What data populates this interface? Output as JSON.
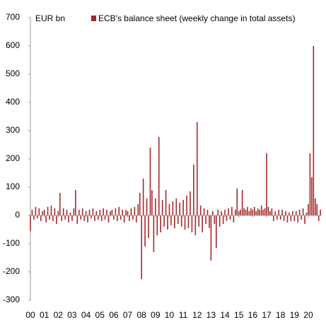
{
  "chart_data": {
    "type": "bar",
    "y_label": "EUR bn",
    "series": [
      {
        "name": "ECB's balance sheet (weekly change in total assets)",
        "color": "#a52a2a",
        "x": [
          2000,
          2000.125,
          2000.25,
          2000.375,
          2000.5,
          2000.625,
          2000.75,
          2000.875,
          2001,
          2001.125,
          2001.25,
          2001.375,
          2001.5,
          2001.625,
          2001.75,
          2001.875,
          2002,
          2002.125,
          2002.25,
          2002.375,
          2002.5,
          2002.625,
          2002.75,
          2002.875,
          2003,
          2003.125,
          2003.25,
          2003.375,
          2003.5,
          2003.625,
          2003.75,
          2003.875,
          2004,
          2004.125,
          2004.25,
          2004.375,
          2004.5,
          2004.625,
          2004.75,
          2004.875,
          2005,
          2005.125,
          2005.25,
          2005.375,
          2005.5,
          2005.625,
          2005.75,
          2005.875,
          2006,
          2006.125,
          2006.25,
          2006.375,
          2006.5,
          2006.625,
          2006.75,
          2006.875,
          2007,
          2007.125,
          2007.25,
          2007.375,
          2007.5,
          2007.625,
          2007.75,
          2007.875,
          2008,
          2008.125,
          2008.25,
          2008.375,
          2008.5,
          2008.625,
          2008.75,
          2008.875,
          2009,
          2009.125,
          2009.25,
          2009.375,
          2009.5,
          2009.625,
          2009.75,
          2009.875,
          2010,
          2010.125,
          2010.25,
          2010.375,
          2010.5,
          2010.625,
          2010.75,
          2010.875,
          2011,
          2011.125,
          2011.25,
          2011.375,
          2011.5,
          2011.625,
          2011.75,
          2011.875,
          2012,
          2012.125,
          2012.25,
          2012.375,
          2012.5,
          2012.625,
          2012.75,
          2012.875,
          2013,
          2013.125,
          2013.25,
          2013.375,
          2013.5,
          2013.625,
          2013.75,
          2013.875,
          2014,
          2014.125,
          2014.25,
          2014.375,
          2014.5,
          2014.625,
          2014.75,
          2014.875,
          2015,
          2015.125,
          2015.25,
          2015.375,
          2015.5,
          2015.625,
          2015.75,
          2015.875,
          2016,
          2016.125,
          2016.25,
          2016.375,
          2016.5,
          2016.625,
          2016.75,
          2016.875,
          2017,
          2017.125,
          2017.25,
          2017.375,
          2017.5,
          2017.625,
          2017.75,
          2017.875,
          2018,
          2018.125,
          2018.25,
          2018.375,
          2018.5,
          2018.625,
          2018.75,
          2018.875,
          2019,
          2019.125,
          2019.25,
          2019.375,
          2019.5,
          2019.625,
          2019.75,
          2019.875,
          2020,
          2020.125,
          2020.25,
          2020.375,
          2020.5,
          2020.625,
          2020.75,
          2020.875
        ],
        "values": [
          -55,
          20,
          -15,
          30,
          -10,
          25,
          -20,
          15,
          20,
          -25,
          30,
          -15,
          35,
          -20,
          25,
          -30,
          15,
          80,
          -20,
          25,
          -15,
          20,
          -25,
          10,
          -20,
          25,
          90,
          -30,
          20,
          -15,
          25,
          -20,
          15,
          -25,
          20,
          -10,
          25,
          -20,
          15,
          -15,
          20,
          -20,
          25,
          -15,
          20,
          -25,
          15,
          20,
          -15,
          25,
          -20,
          30,
          -15,
          20,
          -25,
          20,
          15,
          -20,
          25,
          -15,
          30,
          -25,
          40,
          80,
          -225,
          130,
          -110,
          60,
          -80,
          240,
          90,
          -130,
          60,
          -70,
          278,
          -60,
          55,
          -40,
          90,
          -50,
          40,
          -35,
          50,
          -45,
          60,
          -30,
          45,
          -40,
          55,
          -50,
          70,
          -45,
          85,
          -60,
          180,
          -70,
          330,
          -40,
          35,
          -60,
          25,
          -30,
          20,
          -45,
          -160,
          15,
          -30,
          -115,
          20,
          -40,
          15,
          -30,
          20,
          -20,
          25,
          -15,
          30,
          -25,
          20,
          95,
          15,
          20,
          90,
          25,
          20,
          30,
          15,
          25,
          20,
          30,
          15,
          25,
          20,
          35,
          20,
          25,
          220,
          30,
          15,
          25,
          -20,
          15,
          -15,
          20,
          -15,
          20,
          -20,
          15,
          -25,
          10,
          -20,
          15,
          -20,
          15,
          -25,
          20,
          -15,
          25,
          -30,
          10,
          40,
          220,
          135,
          600,
          60,
          40,
          -20,
          20
        ]
      }
    ],
    "xlim": [
      2000,
      2021
    ],
    "xticks": [
      {
        "value": 2000,
        "label": "00"
      },
      {
        "value": 2001,
        "label": "01"
      },
      {
        "value": 2002,
        "label": "02"
      },
      {
        "value": 2003,
        "label": "03"
      },
      {
        "value": 2004,
        "label": "04"
      },
      {
        "value": 2005,
        "label": "05"
      },
      {
        "value": 2006,
        "label": "06"
      },
      {
        "value": 2007,
        "label": "07"
      },
      {
        "value": 2008,
        "label": "08"
      },
      {
        "value": 2009,
        "label": "09"
      },
      {
        "value": 2010,
        "label": "10"
      },
      {
        "value": 2011,
        "label": "11"
      },
      {
        "value": 2012,
        "label": "12"
      },
      {
        "value": 2013,
        "label": "13"
      },
      {
        "value": 2014,
        "label": "14"
      },
      {
        "value": 2015,
        "label": "15"
      },
      {
        "value": 2016,
        "label": "16"
      },
      {
        "value": 2017,
        "label": "17"
      },
      {
        "value": 2018,
        "label": "18"
      },
      {
        "value": 2019,
        "label": "19"
      },
      {
        "value": 2020,
        "label": "20"
      }
    ],
    "ylim": [
      -300,
      700
    ],
    "yticks": [
      -300,
      -200,
      -100,
      0,
      100,
      200,
      300,
      400,
      500,
      600,
      700
    ]
  }
}
